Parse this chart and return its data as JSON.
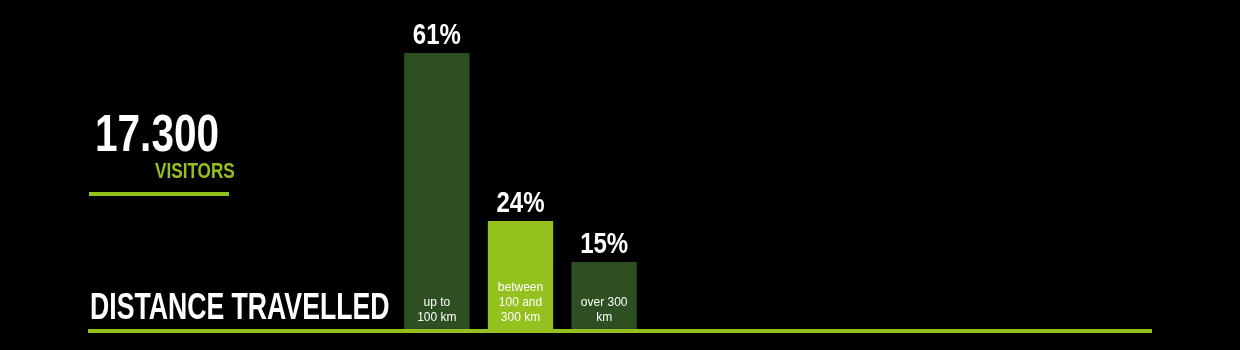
{
  "chart_data": {
    "type": "bar",
    "title": "DISTANCE TRAVELLED",
    "categories": [
      "up to 100 km",
      "between 100 and 300 km",
      "over 300 km"
    ],
    "values": [
      61,
      24,
      15
    ],
    "colors": [
      "#2d4f22",
      "#95c11f",
      "#2d4f22"
    ],
    "value_labels": [
      "61%",
      "24%",
      "15%"
    ],
    "annotations": [
      "17.300",
      "VISITORS"
    ]
  }
}
